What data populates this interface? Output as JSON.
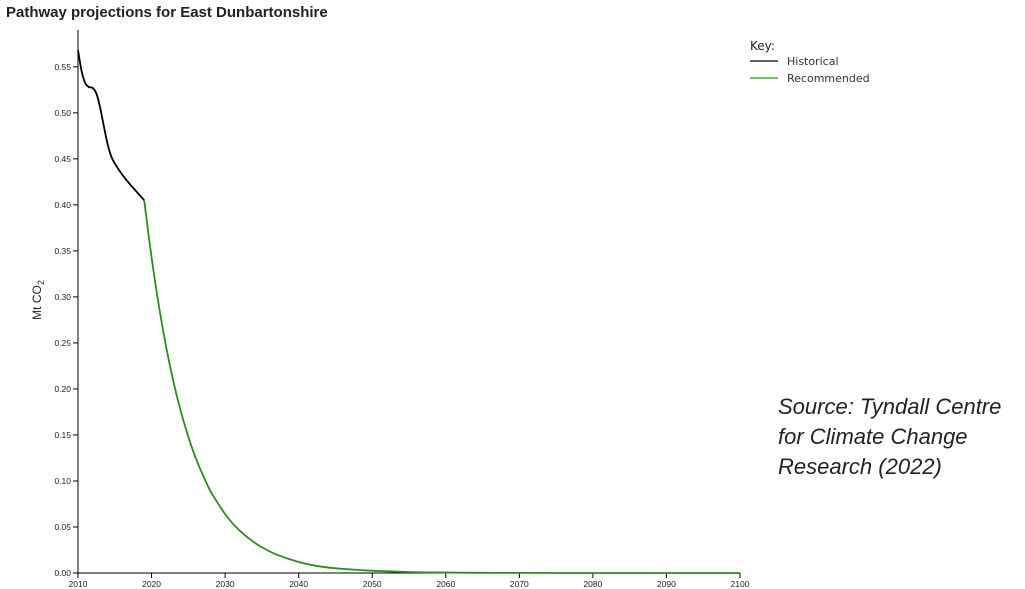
{
  "chart_data": {
    "type": "line",
    "title": "Pathway projections for East Dunbartonshire",
    "ylabel": "Mt CO",
    "ylabel_subscript": "2",
    "xlim": [
      2010,
      2100
    ],
    "ylim": [
      0,
      0.58
    ],
    "x_ticks": [
      2010,
      2020,
      2030,
      2040,
      2050,
      2060,
      2070,
      2080,
      2090,
      2100
    ],
    "y_ticks": [
      "0.00",
      "0.05",
      "0.10",
      "0.15",
      "0.20",
      "0.25",
      "0.30",
      "0.35",
      "0.40",
      "0.45",
      "0.50",
      "0.55"
    ],
    "grid": false,
    "legend": {
      "title": "Key:",
      "position": "top-right"
    },
    "series": [
      {
        "name": "Historical",
        "color": "#000000",
        "x": [
          2010,
          2010.5,
          2011,
          2011.5,
          2012,
          2012.5,
          2013,
          2013.5,
          2014,
          2014.5,
          2015,
          2016,
          2017,
          2018,
          2019
        ],
        "y": [
          0.568,
          0.545,
          0.532,
          0.528,
          0.527,
          0.521,
          0.506,
          0.486,
          0.467,
          0.453,
          0.445,
          0.433,
          0.423,
          0.414,
          0.405
        ]
      },
      {
        "name": "Recommended",
        "color": "#2e8b1e",
        "x": [
          2019,
          2020,
          2021,
          2022,
          2023,
          2024,
          2025,
          2026,
          2027,
          2028,
          2029,
          2030,
          2031,
          2032,
          2033,
          2034,
          2035,
          2037,
          2040,
          2043,
          2046,
          2050,
          2055,
          2060,
          2065,
          2070,
          2080,
          2090,
          2100
        ],
        "y": [
          0.405,
          0.343,
          0.29,
          0.245,
          0.207,
          0.175,
          0.148,
          0.125,
          0.106,
          0.089,
          0.076,
          0.064,
          0.054,
          0.046,
          0.039,
          0.033,
          0.028,
          0.02,
          0.012,
          0.007,
          0.0045,
          0.0025,
          0.0011,
          0.0005,
          0.0002,
          0.0001,
          0.0,
          0.0,
          0.0
        ]
      }
    ]
  },
  "source_note": "Source: Tyndall Centre for Climate Change Research (2022)"
}
